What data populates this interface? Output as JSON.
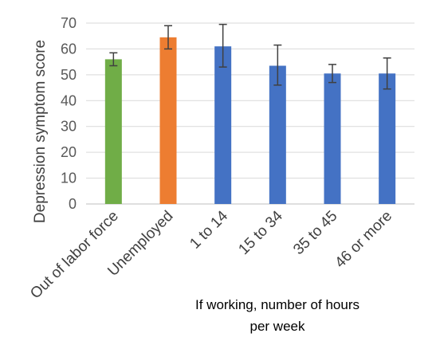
{
  "chart_data": {
    "type": "bar",
    "title": "",
    "xlabel": "",
    "ylabel": "Depression symptom score",
    "ylim": [
      0,
      70
    ],
    "yticks": [
      0,
      10,
      20,
      30,
      40,
      50,
      60,
      70
    ],
    "grid": true,
    "legend": "none",
    "categories": [
      "Out of labor force",
      "Unemployed",
      "1 to 14",
      "15 to 34",
      "35 to 45",
      "46 or more"
    ],
    "values": [
      56,
      64.5,
      61,
      53.5,
      50.5,
      50.5
    ],
    "error_low": [
      53.5,
      60,
      53,
      46,
      47,
      44.5
    ],
    "error_high": [
      58.5,
      69,
      69.5,
      61.5,
      54,
      56.5
    ],
    "colors": [
      "#70ad47",
      "#ed7d31",
      "#4472c4",
      "#4472c4",
      "#4472c4",
      "#4472c4"
    ],
    "group_label_lines": [
      "If working, number of hours",
      "per week"
    ]
  }
}
